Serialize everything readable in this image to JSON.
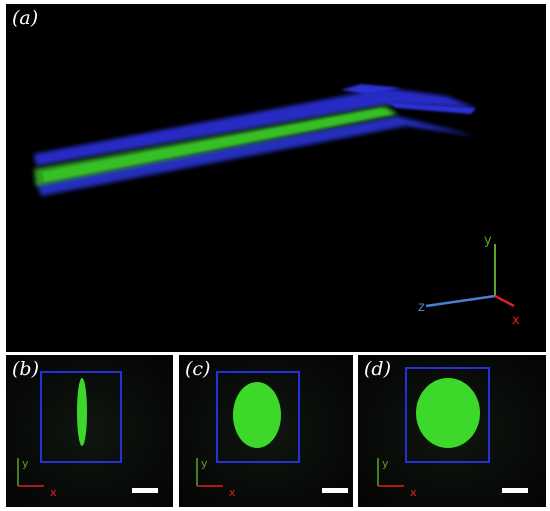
{
  "panels": {
    "a": {
      "label": "(a)",
      "axes": {
        "x": "x",
        "y": "y",
        "z": "z"
      }
    },
    "b": {
      "label": "(b)",
      "axes": {
        "x": "x",
        "y": "y"
      }
    },
    "c": {
      "label": "(c)",
      "axes": {
        "x": "x",
        "y": "y"
      }
    },
    "d": {
      "label": "(d)",
      "axes": {
        "x": "x",
        "y": "y"
      }
    }
  },
  "colors": {
    "background": "#000000",
    "tube": "#2a2fd0",
    "core": "#3cd82a",
    "roi_box": "#2530d8",
    "x_axis": "#e02020",
    "y_axis": "#5aa52a",
    "z_axis": "#4a7fd0"
  }
}
